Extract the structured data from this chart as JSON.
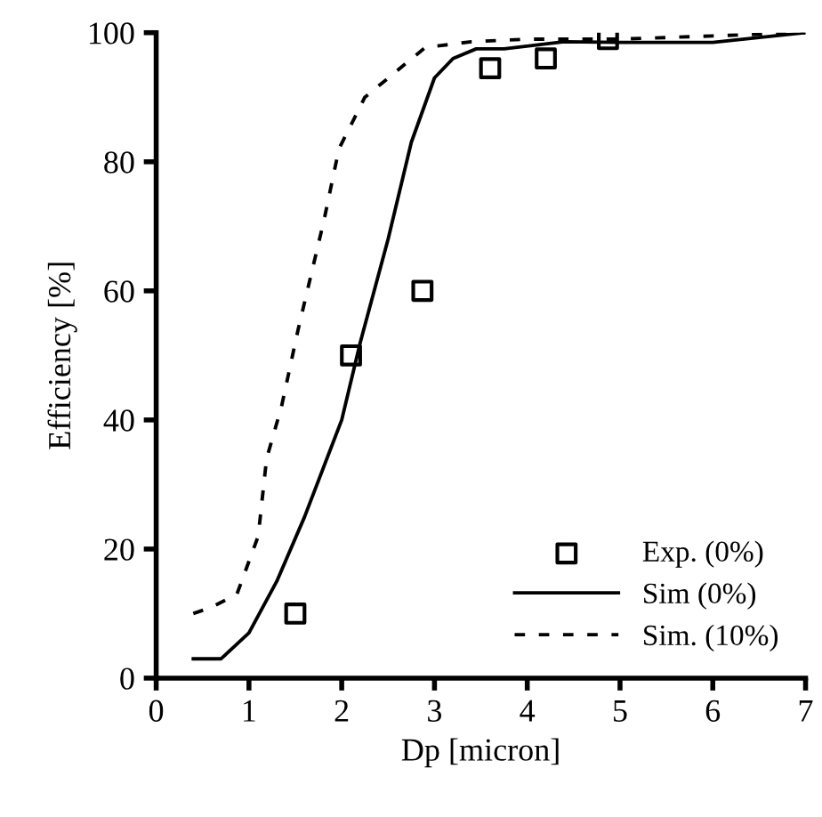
{
  "chart_data": {
    "type": "line",
    "xlabel": "Dp [micron]",
    "ylabel": "Efficiency [%]",
    "xlim": [
      0,
      7
    ],
    "ylim": [
      0,
      100
    ],
    "xticks": [
      0,
      1,
      2,
      3,
      4,
      5,
      6,
      7
    ],
    "yticks": [
      0,
      20,
      40,
      60,
      80,
      100
    ],
    "grid": false,
    "legend": "bottom right",
    "series": [
      {
        "name": "Exp. (0%)",
        "type": "scatter",
        "marker": "square",
        "color": "#000000",
        "x": [
          1.5,
          2.1,
          2.87,
          3.6,
          4.2,
          4.87
        ],
        "values": [
          10,
          50,
          60,
          94.5,
          96,
          99
        ]
      },
      {
        "name": "Sim (0%)",
        "line_style": "solid",
        "color": "#000000",
        "x": [
          0.4,
          0.7,
          1.0,
          1.3,
          1.6,
          2.0,
          2.2,
          2.5,
          2.75,
          3.0,
          3.2,
          3.45,
          3.75,
          4.4,
          5,
          6,
          7
        ],
        "values": [
          3,
          3,
          7,
          15,
          25,
          40,
          52,
          68,
          83,
          93,
          96,
          97.5,
          97.5,
          98.6,
          98.5,
          98.5,
          100
        ]
      },
      {
        "name": "Sim. (10%)",
        "line_style": "dashed",
        "color": "#000000",
        "x": [
          0.4,
          0.6,
          0.87,
          1.1,
          1.19,
          1.35,
          1.53,
          1.81,
          1.97,
          2.25,
          2.9,
          3.4,
          4,
          5,
          6,
          7
        ],
        "values": [
          10,
          11,
          13,
          22,
          34,
          42,
          54,
          71,
          82,
          90,
          97.7,
          98.6,
          99,
          99,
          99.5,
          100
        ]
      }
    ]
  }
}
